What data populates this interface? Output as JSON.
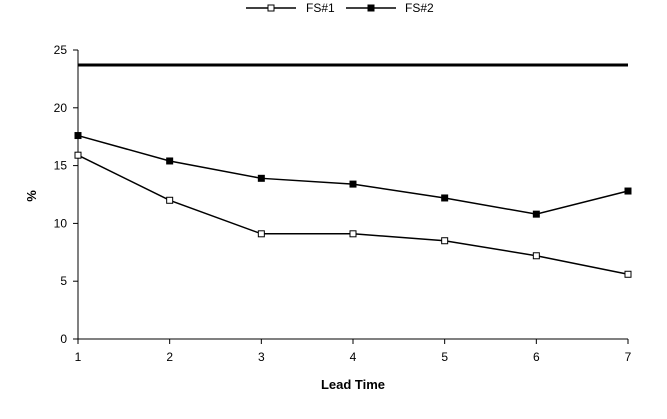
{
  "chart_data": {
    "type": "line",
    "title": "",
    "xlabel": "Lead Time",
    "ylabel": "%",
    "x": [
      1,
      2,
      3,
      4,
      5,
      6,
      7
    ],
    "ylim": [
      0,
      25
    ],
    "yticks": [
      0,
      5,
      10,
      15,
      20,
      25
    ],
    "grid": false,
    "legend_position": "top-center",
    "series": [
      {
        "name": "FS#1",
        "marker": "open-square",
        "values": [
          15.9,
          12.0,
          9.1,
          9.1,
          8.5,
          7.2,
          5.6
        ]
      },
      {
        "name": "FS#2",
        "marker": "filled-square",
        "values": [
          17.6,
          15.4,
          13.9,
          13.4,
          12.2,
          10.8,
          12.8
        ]
      }
    ],
    "reference_line": {
      "value": 23.7
    },
    "colors": {
      "line": "#000000",
      "background": "#ffffff"
    }
  }
}
